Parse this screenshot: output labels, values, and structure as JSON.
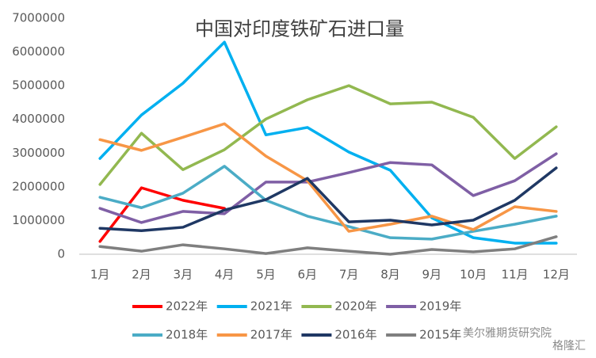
{
  "chart_data": {
    "type": "line",
    "title": "中国对印度铁矿石进口量",
    "categories": [
      "1月",
      "2月",
      "3月",
      "4月",
      "5月",
      "6月",
      "7月",
      "8月",
      "9月",
      "10月",
      "11月",
      "12月"
    ],
    "series": [
      {
        "name": "2022年",
        "color": "#ff0000",
        "values": [
          380000,
          1970000,
          1600000,
          1360000,
          null,
          null,
          null,
          null,
          null,
          null,
          null,
          null
        ]
      },
      {
        "name": "2021年",
        "color": "#00b0f0",
        "values": [
          2840000,
          4130000,
          5070000,
          6290000,
          3540000,
          3760000,
          3030000,
          2490000,
          1080000,
          490000,
          330000,
          330000
        ]
      },
      {
        "name": "2020年",
        "color": "#92b850",
        "values": [
          2070000,
          3590000,
          2510000,
          3100000,
          4010000,
          4580000,
          5000000,
          4460000,
          4510000,
          4060000,
          2840000,
          3780000
        ]
      },
      {
        "name": "2019年",
        "color": "#7f5fa5",
        "values": [
          1360000,
          940000,
          1270000,
          1200000,
          2140000,
          2140000,
          2420000,
          2720000,
          2650000,
          1740000,
          2180000,
          2980000
        ]
      },
      {
        "name": "2018年",
        "color": "#4bacc6",
        "values": [
          1690000,
          1380000,
          1810000,
          2610000,
          1600000,
          1130000,
          820000,
          490000,
          450000,
          680000,
          890000,
          1130000
        ]
      },
      {
        "name": "2017年",
        "color": "#f79646",
        "values": [
          3400000,
          3080000,
          3470000,
          3870000,
          2910000,
          2180000,
          680000,
          890000,
          1130000,
          730000,
          1410000,
          1270000
        ]
      },
      {
        "name": "2016年",
        "color": "#1f3864",
        "values": [
          770000,
          700000,
          800000,
          1310000,
          1620000,
          2250000,
          960000,
          1010000,
          870000,
          1010000,
          1600000,
          2560000
        ]
      },
      {
        "name": "2015年",
        "color": "#7f7f7f",
        "values": [
          230000,
          90000,
          280000,
          160000,
          20000,
          190000,
          90000,
          0,
          140000,
          70000,
          160000,
          520000
        ]
      }
    ],
    "ylim": [
      0,
      7000000
    ],
    "yticks": [
      0,
      1000000,
      2000000,
      3000000,
      4000000,
      5000000,
      6000000,
      7000000
    ],
    "grid": false,
    "legend": "bottom",
    "watermark": [
      "美尔雅期货研究院",
      "格隆汇"
    ]
  }
}
